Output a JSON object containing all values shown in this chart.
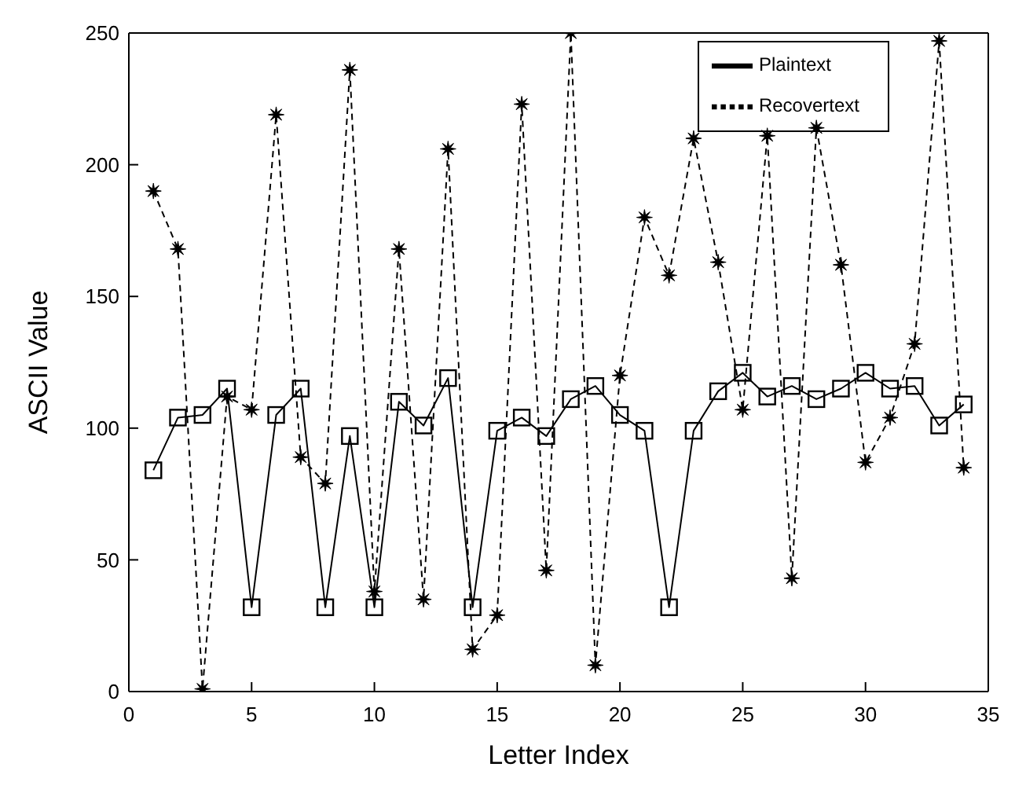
{
  "chart_data": {
    "type": "line",
    "xlabel": "Letter Index",
    "ylabel": "ASCII Value",
    "x": [
      1,
      2,
      3,
      4,
      5,
      6,
      7,
      8,
      9,
      10,
      11,
      12,
      13,
      14,
      15,
      16,
      17,
      18,
      19,
      20,
      21,
      22,
      23,
      24,
      25,
      26,
      27,
      28,
      29,
      30,
      31,
      32,
      33,
      34
    ],
    "series": [
      {
        "name": "Plaintext",
        "color": "#000000",
        "marker": "square",
        "line_style": "solid",
        "values": [
          84,
          104,
          105,
          115,
          32,
          105,
          115,
          32,
          97,
          32,
          110,
          101,
          119,
          32,
          99,
          104,
          97,
          111,
          116,
          105,
          99,
          32,
          99,
          114,
          121,
          112,
          116,
          111,
          115,
          121,
          115,
          116,
          101,
          109
        ]
      },
      {
        "name": "Recovertext",
        "color": "#000000",
        "marker": "star",
        "line_style": "dashed",
        "values": [
          190,
          168,
          1,
          112,
          107,
          219,
          89,
          79,
          236,
          38,
          168,
          35,
          206,
          16,
          29,
          223,
          46,
          250,
          10,
          120,
          180,
          158,
          210,
          163,
          107,
          211,
          43,
          214,
          162,
          87,
          104,
          132,
          247,
          85
        ]
      }
    ],
    "xlim": [
      0,
      35
    ],
    "xticks": [
      0,
      5,
      10,
      15,
      20,
      25,
      30,
      35
    ],
    "ylim": [
      0,
      250
    ],
    "yticks": [
      0,
      50,
      100,
      150,
      200,
      250
    ],
    "grid": false,
    "legend": "top right"
  }
}
